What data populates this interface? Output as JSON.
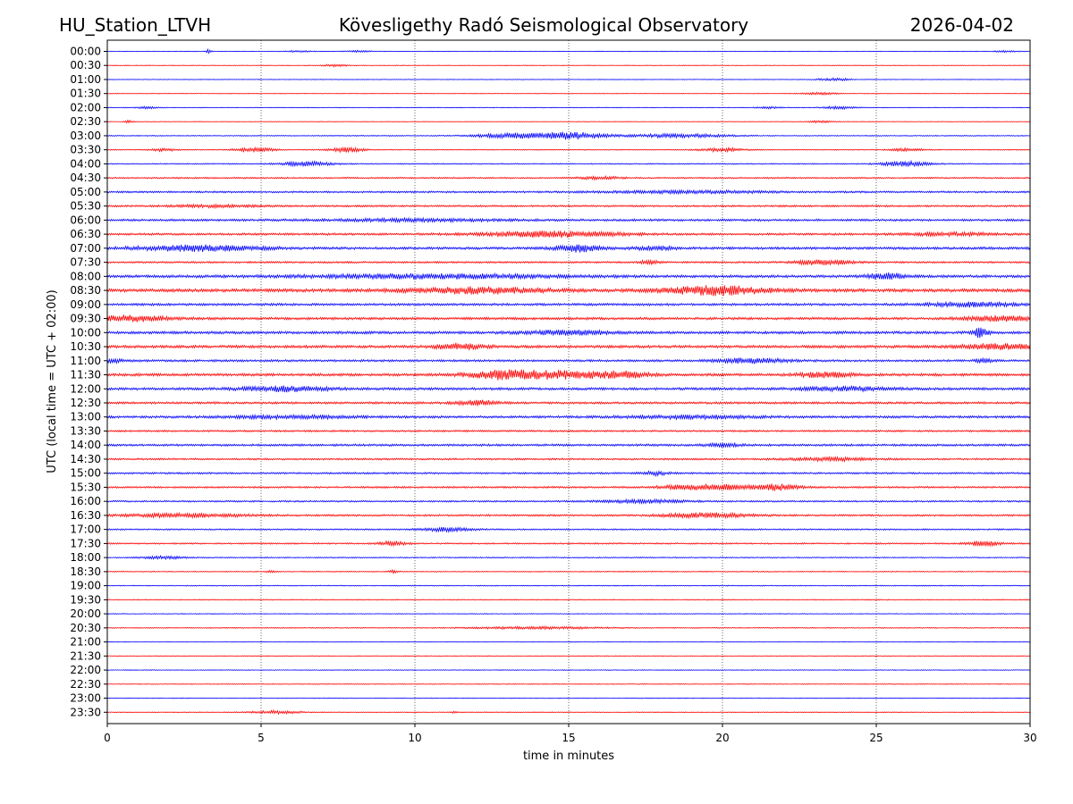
{
  "header": {
    "station": "HU_Station_LTVH",
    "observatory": "Kövesligethy Radó Seismological Observatory",
    "date": "2026-04-02"
  },
  "chart_data": {
    "type": "line",
    "title": "Kövesligethy Radó Seismological Observatory",
    "xlabel": "time in minutes",
    "ylabel": "UTC (local time = UTC + 02:00)",
    "xlim": [
      0,
      30
    ],
    "xticks": [
      "0",
      "5",
      "10",
      "15",
      "20",
      "25",
      "30"
    ],
    "grid": "vertical dotted at 5-minute ticks",
    "colors": {
      "even_row": "#0000ff",
      "odd_row": "#ff0000"
    },
    "rows": [
      {
        "label": "00:00",
        "noise": 0.3,
        "events": [
          {
            "t": 3.3,
            "amp": 3.0,
            "w": 0.05
          },
          {
            "t": 6.2,
            "amp": 1.0,
            "w": 0.3
          },
          {
            "t": 8.2,
            "amp": 1.0,
            "w": 0.3
          },
          {
            "t": 29.2,
            "amp": 0.8,
            "w": 0.3
          }
        ]
      },
      {
        "label": "00:30",
        "noise": 0.3,
        "events": [
          {
            "t": 7.4,
            "amp": 1.3,
            "w": 0.3
          }
        ]
      },
      {
        "label": "01:00",
        "noise": 0.35,
        "events": [
          {
            "t": 23.6,
            "amp": 1.5,
            "w": 0.4
          }
        ]
      },
      {
        "label": "01:30",
        "noise": 0.35,
        "events": [
          {
            "t": 23.2,
            "amp": 1.4,
            "w": 0.4
          }
        ]
      },
      {
        "label": "02:00",
        "noise": 0.4,
        "events": [
          {
            "t": 1.3,
            "amp": 1.0,
            "w": 0.3
          },
          {
            "t": 21.5,
            "amp": 1.0,
            "w": 0.3
          },
          {
            "t": 23.8,
            "amp": 1.5,
            "w": 0.4
          }
        ]
      },
      {
        "label": "02:30",
        "noise": 0.3,
        "events": [
          {
            "t": 0.7,
            "amp": 1.5,
            "w": 0.1
          },
          {
            "t": 23.2,
            "amp": 1.2,
            "w": 0.3
          }
        ]
      },
      {
        "label": "03:00",
        "noise": 0.5,
        "events": [
          {
            "t": 13.0,
            "amp": 2.5,
            "w": 0.8
          },
          {
            "t": 15.0,
            "amp": 4.0,
            "w": 0.8
          },
          {
            "t": 18.5,
            "amp": 2.0,
            "w": 1.2
          }
        ]
      },
      {
        "label": "03:30",
        "noise": 0.5,
        "events": [
          {
            "t": 1.8,
            "amp": 1.5,
            "w": 0.3
          },
          {
            "t": 4.8,
            "amp": 2.0,
            "w": 0.5
          },
          {
            "t": 7.8,
            "amp": 2.5,
            "w": 0.4
          },
          {
            "t": 20.0,
            "amp": 2.0,
            "w": 0.5
          },
          {
            "t": 26.0,
            "amp": 1.5,
            "w": 0.4
          }
        ]
      },
      {
        "label": "04:00",
        "noise": 0.6,
        "events": [
          {
            "t": 6.5,
            "amp": 2.5,
            "w": 0.6
          },
          {
            "t": 26.0,
            "amp": 2.5,
            "w": 0.6
          }
        ]
      },
      {
        "label": "04:30",
        "noise": 0.8,
        "events": [
          {
            "t": 16.0,
            "amp": 1.5,
            "w": 0.5
          }
        ]
      },
      {
        "label": "05:00",
        "noise": 1.0,
        "events": [
          {
            "t": 19.0,
            "amp": 1.2,
            "w": 2.0
          }
        ]
      },
      {
        "label": "05:30",
        "noise": 1.0,
        "events": [
          {
            "t": 3.5,
            "amp": 1.2,
            "w": 1.0
          }
        ]
      },
      {
        "label": "06:00",
        "noise": 1.2,
        "events": [
          {
            "t": 10.0,
            "amp": 1.2,
            "w": 2.0
          }
        ]
      },
      {
        "label": "06:30",
        "noise": 1.2,
        "events": [
          {
            "t": 14.5,
            "amp": 3.0,
            "w": 1.5
          },
          {
            "t": 27.5,
            "amp": 1.5,
            "w": 1.0
          }
        ]
      },
      {
        "label": "07:00",
        "noise": 1.4,
        "events": [
          {
            "t": 3.0,
            "amp": 2.8,
            "w": 1.5
          },
          {
            "t": 15.3,
            "amp": 3.5,
            "w": 0.5
          },
          {
            "t": 17.8,
            "amp": 1.8,
            "w": 0.5
          }
        ]
      },
      {
        "label": "07:30",
        "noise": 1.0,
        "events": [
          {
            "t": 17.6,
            "amp": 2.2,
            "w": 0.2
          },
          {
            "t": 23.3,
            "amp": 3.0,
            "w": 0.6
          }
        ]
      },
      {
        "label": "08:00",
        "noise": 1.5,
        "events": [
          {
            "t": 10.5,
            "amp": 2.0,
            "w": 3.0
          },
          {
            "t": 25.3,
            "amp": 3.5,
            "w": 0.4
          }
        ]
      },
      {
        "label": "08:30",
        "noise": 1.8,
        "events": [
          {
            "t": 12.0,
            "amp": 3.0,
            "w": 1.5
          },
          {
            "t": 19.8,
            "amp": 4.5,
            "w": 1.2
          }
        ]
      },
      {
        "label": "09:00",
        "noise": 1.3,
        "events": [
          {
            "t": 28.0,
            "amp": 2.2,
            "w": 1.0
          }
        ]
      },
      {
        "label": "09:30",
        "noise": 1.4,
        "events": [
          {
            "t": 0.8,
            "amp": 3.0,
            "w": 0.8
          },
          {
            "t": 29.0,
            "amp": 2.5,
            "w": 0.8
          }
        ]
      },
      {
        "label": "10:00",
        "noise": 1.5,
        "events": [
          {
            "t": 15.0,
            "amp": 2.0,
            "w": 1.0
          },
          {
            "t": 28.4,
            "amp": 6.0,
            "w": 0.15
          }
        ]
      },
      {
        "label": "10:30",
        "noise": 1.5,
        "events": [
          {
            "t": 11.5,
            "amp": 3.0,
            "w": 0.6
          },
          {
            "t": 29.0,
            "amp": 3.0,
            "w": 0.8
          }
        ]
      },
      {
        "label": "11:00",
        "noise": 1.2,
        "events": [
          {
            "t": 21.0,
            "amp": 2.5,
            "w": 0.8
          },
          {
            "t": 0.2,
            "amp": 2.0,
            "w": 0.2
          },
          {
            "t": 28.5,
            "amp": 1.5,
            "w": 0.2
          }
        ]
      },
      {
        "label": "11:30",
        "noise": 1.5,
        "events": [
          {
            "t": 12.8,
            "amp": 4.5,
            "w": 0.8
          },
          {
            "t": 14.8,
            "amp": 4.0,
            "w": 0.9
          },
          {
            "t": 16.8,
            "amp": 3.0,
            "w": 0.6
          },
          {
            "t": 23.3,
            "amp": 2.5,
            "w": 0.6
          }
        ]
      },
      {
        "label": "12:00",
        "noise": 1.4,
        "events": [
          {
            "t": 5.8,
            "amp": 2.5,
            "w": 1.0
          },
          {
            "t": 24.0,
            "amp": 2.0,
            "w": 1.0
          }
        ]
      },
      {
        "label": "12:30",
        "noise": 1.2,
        "events": [
          {
            "t": 12.0,
            "amp": 2.5,
            "w": 0.5
          }
        ]
      },
      {
        "label": "13:00",
        "noise": 1.3,
        "events": [
          {
            "t": 6.0,
            "amp": 1.5,
            "w": 1.5
          },
          {
            "t": 19.0,
            "amp": 1.5,
            "w": 1.5
          }
        ]
      },
      {
        "label": "13:30",
        "noise": 1.0,
        "events": []
      },
      {
        "label": "14:00",
        "noise": 1.2,
        "events": [
          {
            "t": 20.0,
            "amp": 1.8,
            "w": 0.4
          }
        ]
      },
      {
        "label": "14:30",
        "noise": 1.0,
        "events": [
          {
            "t": 23.5,
            "amp": 1.5,
            "w": 1.0
          }
        ]
      },
      {
        "label": "15:00",
        "noise": 1.0,
        "events": [
          {
            "t": 17.8,
            "amp": 2.0,
            "w": 0.3
          }
        ]
      },
      {
        "label": "15:30",
        "noise": 1.0,
        "events": [
          {
            "t": 19.5,
            "amp": 3.0,
            "w": 1.0
          },
          {
            "t": 21.8,
            "amp": 3.0,
            "w": 0.5
          }
        ]
      },
      {
        "label": "16:00",
        "noise": 0.9,
        "events": [
          {
            "t": 17.5,
            "amp": 1.5,
            "w": 1.0
          }
        ]
      },
      {
        "label": "16:30",
        "noise": 1.0,
        "events": [
          {
            "t": 2.5,
            "amp": 1.8,
            "w": 1.5
          },
          {
            "t": 19.5,
            "amp": 2.5,
            "w": 1.0
          }
        ]
      },
      {
        "label": "17:00",
        "noise": 0.8,
        "events": [
          {
            "t": 11.0,
            "amp": 2.0,
            "w": 0.6
          }
        ]
      },
      {
        "label": "17:30",
        "noise": 0.8,
        "events": [
          {
            "t": 9.3,
            "amp": 2.5,
            "w": 0.3
          },
          {
            "t": 28.5,
            "amp": 2.5,
            "w": 0.4
          }
        ]
      },
      {
        "label": "18:00",
        "noise": 0.6,
        "events": [
          {
            "t": 1.8,
            "amp": 1.5,
            "w": 0.5
          }
        ]
      },
      {
        "label": "18:30",
        "noise": 0.5,
        "events": [
          {
            "t": 9.3,
            "amp": 2.0,
            "w": 0.1
          },
          {
            "t": 5.3,
            "amp": 1.2,
            "w": 0.1
          }
        ]
      },
      {
        "label": "19:00",
        "noise": 0.5,
        "events": []
      },
      {
        "label": "19:30",
        "noise": 0.5,
        "events": []
      },
      {
        "label": "20:00",
        "noise": 0.4,
        "events": []
      },
      {
        "label": "20:30",
        "noise": 0.5,
        "events": [
          {
            "t": 14.0,
            "amp": 1.2,
            "w": 1.5
          }
        ]
      },
      {
        "label": "21:00",
        "noise": 0.4,
        "events": []
      },
      {
        "label": "21:30",
        "noise": 0.4,
        "events": []
      },
      {
        "label": "22:00",
        "noise": 0.4,
        "events": []
      },
      {
        "label": "22:30",
        "noise": 0.4,
        "events": []
      },
      {
        "label": "23:00",
        "noise": 0.4,
        "events": []
      },
      {
        "label": "23:30",
        "noise": 0.4,
        "events": [
          {
            "t": 5.5,
            "amp": 1.8,
            "w": 0.6
          },
          {
            "t": 11.3,
            "amp": 1.5,
            "w": 0.1
          }
        ]
      }
    ]
  }
}
